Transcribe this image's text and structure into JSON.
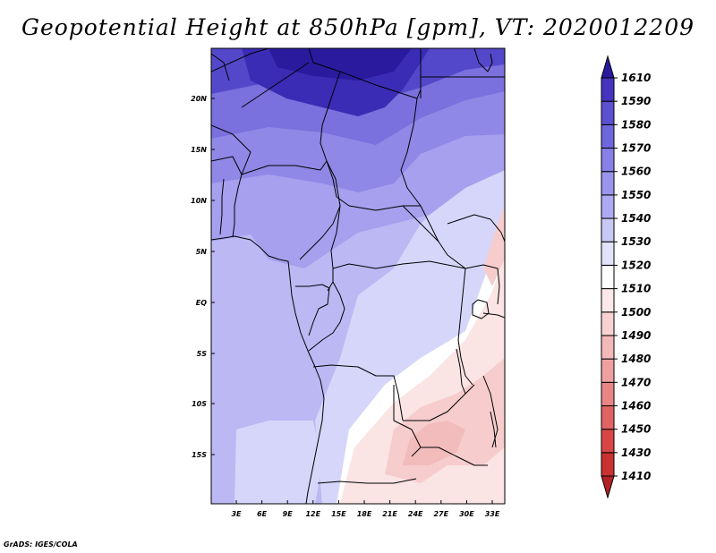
{
  "title": "Geopotential Height at 850hPa [gpm], VT: 2020012209",
  "credit": "GrADS: IGES/COLA",
  "map": {
    "variable": "Geopotential Height",
    "level": "850hPa",
    "units": "gpm",
    "valid_time": "2020012209",
    "lat_labels": [
      "20N",
      "15N",
      "10N",
      "5N",
      "EQ",
      "5S",
      "10S",
      "15S"
    ],
    "lon_labels": [
      "3E",
      "6E",
      "9E",
      "12E",
      "15E",
      "18E",
      "21E",
      "24E",
      "27E",
      "30E",
      "33E"
    ]
  },
  "colorbar": {
    "levels": [
      "1410",
      "1430",
      "1450",
      "1460",
      "1470",
      "1480",
      "1490",
      "1500",
      "1510",
      "1520",
      "1530",
      "1540",
      "1550",
      "1560",
      "1570",
      "1580",
      "1590",
      "1610"
    ],
    "colors": [
      "#b22222",
      "#c83232",
      "#d84646",
      "#e06464",
      "#e88686",
      "#eea0a0",
      "#f3b8b8",
      "#f8d2d2",
      "#fce8e8",
      "#fdfdfd",
      "#e2e2fb",
      "#c8c8f6",
      "#aeaaf2",
      "#9a94ec",
      "#8880e6",
      "#6e66dc",
      "#5a50d0",
      "#4634be",
      "#2a1a9e"
    ]
  },
  "regions_colors": {
    "deep": "#3a2cb4",
    "dark": "#5448ca",
    "mid": "#7a70de",
    "mid2": "#8f88e6",
    "light": "#a6a0ee",
    "lighter": "#bcb8f4",
    "pale": "#d6d6fa",
    "white": "#ffffff",
    "pink1": "#fbe4e4",
    "pink2": "#f6cccc",
    "pink3": "#f2bcbc"
  }
}
